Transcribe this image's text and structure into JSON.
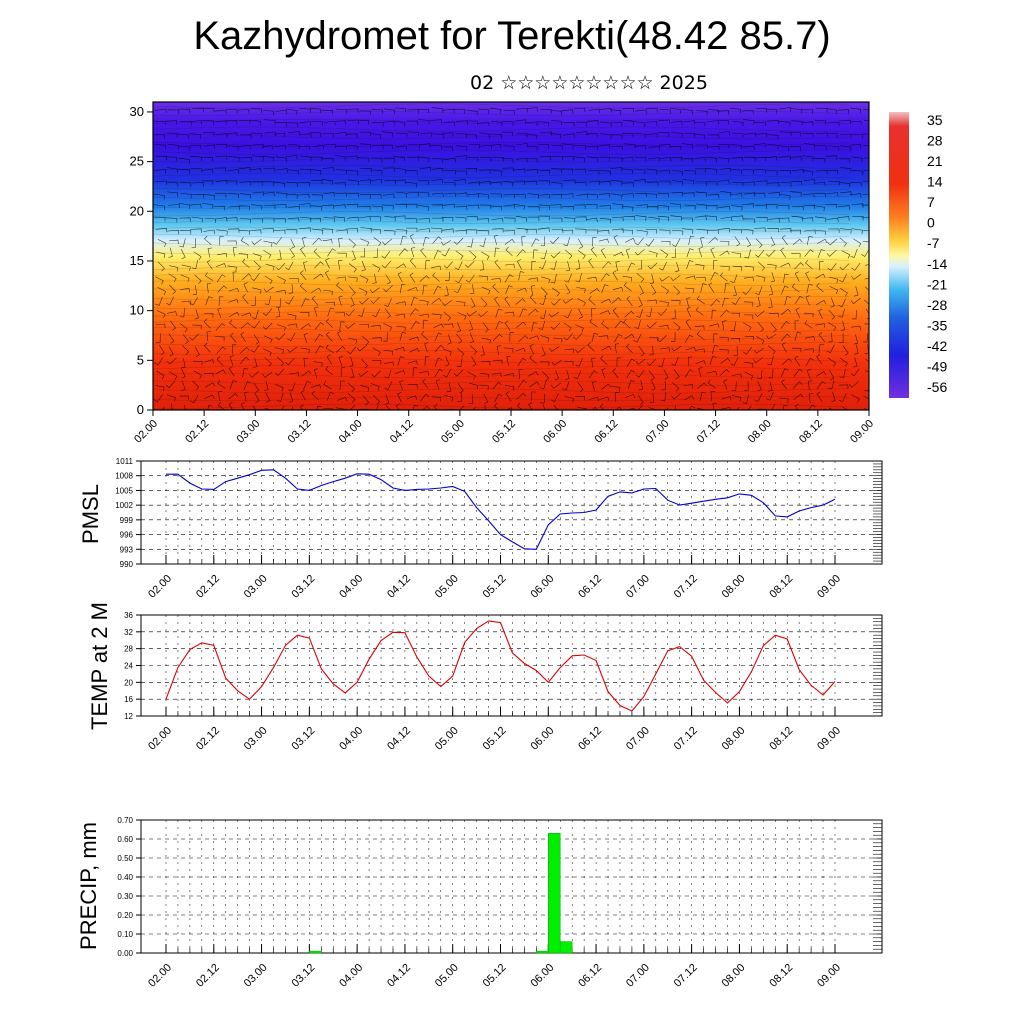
{
  "title": "Kazhydromet for Terekti(48.42 85.7)",
  "subtitle": "02 ☆☆☆☆☆☆☆☆☆ 2025",
  "time_labels": [
    "02.00",
    "02.12",
    "03.00",
    "03.12",
    "04.00",
    "04.12",
    "05.00",
    "05.12",
    "06.00",
    "06.12",
    "07.00",
    "07.12",
    "08.00",
    "08.12",
    "09.00"
  ],
  "colors": {
    "pmsl_line": "#0000cc",
    "temp_line": "#dd0000",
    "precip_bar": "#00ee00",
    "section_warm": "#e8200a",
    "section_cold": "#3a10e0"
  },
  "chart_data": [
    {
      "type": "heatmap",
      "name": "cross-section",
      "y_ticks": [
        0,
        5,
        10,
        15,
        20,
        25,
        30
      ],
      "ylim": [
        0,
        31
      ],
      "colorbar_labels": [
        "35",
        "28",
        "21",
        "14",
        "7",
        "0",
        "-7",
        "-14",
        "-21",
        "-28",
        "-35",
        "-42",
        "-49",
        "-56"
      ],
      "levels": [
        0,
        5,
        10,
        15,
        20,
        25,
        30
      ],
      "value_by_level": [
        28,
        24,
        16,
        -4,
        -30,
        -52,
        -56
      ]
    },
    {
      "type": "line",
      "ylabel": "PMSL",
      "ylim": [
        990,
        1011
      ],
      "y_ticks": [
        990,
        993,
        996,
        999,
        1002,
        1005,
        1008,
        1011
      ],
      "x": [
        0,
        1,
        2,
        3,
        4,
        5,
        6,
        7,
        8,
        9,
        10,
        11,
        12,
        13,
        14,
        15,
        16,
        17,
        18,
        19,
        20,
        21,
        22,
        23,
        24,
        25,
        26,
        27,
        28,
        29,
        30,
        31,
        32,
        33,
        34,
        35,
        36,
        37,
        38,
        39,
        40,
        41,
        42,
        43,
        44,
        45,
        46,
        47,
        48,
        49,
        50,
        51,
        52,
        53,
        54,
        55,
        56
      ],
      "values": [
        1008.3,
        1008.3,
        1006.5,
        1005.3,
        1005.2,
        1006.8,
        1007.5,
        1008.2,
        1009.1,
        1009.2,
        1007.5,
        1005.3,
        1005.0,
        1006.0,
        1006.8,
        1007.5,
        1008.4,
        1008.3,
        1007.2,
        1005.5,
        1005.0,
        1005.2,
        1005.3,
        1005.5,
        1005.8,
        1004.8,
        1001.5,
        998.8,
        996.0,
        994.5,
        993.1,
        993.0,
        998.0,
        1000.2,
        1000.4,
        1000.5,
        1001.0,
        1003.8,
        1004.7,
        1004.5,
        1005.3,
        1005.4,
        1003.0,
        1002.0,
        1002.4,
        1002.8,
        1003.2,
        1003.5,
        1004.3,
        1004.0,
        1002.5,
        999.8,
        999.6,
        1000.8,
        1001.5,
        1002.0,
        1003.2
      ],
      "series": [
        {
          "name": "PMSL"
        }
      ]
    },
    {
      "type": "line",
      "ylabel": "TEMP at 2 M",
      "ylim": [
        12,
        36
      ],
      "y_ticks": [
        12,
        16,
        20,
        24,
        28,
        32,
        36
      ],
      "x": [
        0,
        1,
        2,
        3,
        4,
        5,
        6,
        7,
        8,
        9,
        10,
        11,
        12,
        13,
        14,
        15,
        16,
        17,
        18,
        19,
        20,
        21,
        22,
        23,
        24,
        25,
        26,
        27,
        28,
        29,
        30,
        31,
        32,
        33,
        34,
        35,
        36,
        37,
        38,
        39,
        40,
        41,
        42,
        43,
        44,
        45,
        46,
        47,
        48,
        49,
        50,
        51,
        52,
        53,
        54,
        55,
        56
      ],
      "values": [
        16.0,
        23.5,
        27.8,
        29.4,
        28.8,
        21.0,
        18.0,
        16.0,
        19.0,
        23.5,
        28.8,
        31.2,
        30.5,
        23.2,
        19.6,
        17.5,
        20.0,
        25.5,
        29.9,
        31.9,
        31.8,
        26.0,
        21.5,
        19.0,
        21.5,
        29.5,
        32.8,
        34.6,
        34.2,
        27.0,
        24.5,
        22.8,
        20.0,
        23.5,
        26.3,
        26.5,
        25.2,
        17.8,
        14.5,
        13.2,
        16.6,
        22.0,
        27.5,
        28.5,
        26.2,
        20.5,
        17.6,
        15.1,
        17.8,
        22.5,
        28.7,
        31.2,
        30.3,
        23.0,
        19.3,
        17.0,
        20.2
      ],
      "series": [
        {
          "name": "TEMP at 2 M"
        }
      ]
    },
    {
      "type": "bar",
      "ylabel": "PRECIP, mm",
      "ylim": [
        0,
        0.7
      ],
      "y_ticks": [
        "0.00",
        "0.10",
        "0.20",
        "0.30",
        "0.40",
        "0.50",
        "0.60",
        "0.70"
      ],
      "bars": [
        {
          "x": 12.5,
          "value": 0.01
        },
        {
          "x": 31.5,
          "value": 0.01
        },
        {
          "x": 32.5,
          "value": 0.63
        },
        {
          "x": 33.5,
          "value": 0.06
        }
      ]
    }
  ]
}
